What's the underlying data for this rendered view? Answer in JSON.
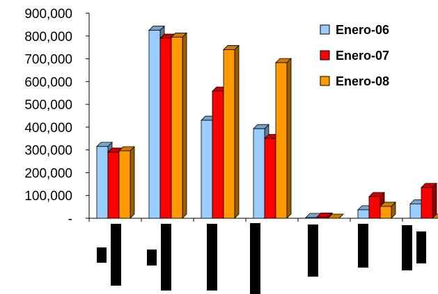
{
  "chart_data": {
    "type": "bar",
    "title": "",
    "xlabel": "",
    "ylabel": "",
    "ylim": [
      0,
      900000
    ],
    "y_ticks": [
      {
        "value": 0,
        "label": "-"
      },
      {
        "value": 100000,
        "label": "100,000"
      },
      {
        "value": 200000,
        "label": "200,000"
      },
      {
        "value": 300000,
        "label": "300,000"
      },
      {
        "value": 400000,
        "label": "400,000"
      },
      {
        "value": 500000,
        "label": "500,000"
      },
      {
        "value": 600000,
        "label": "600,000"
      },
      {
        "value": 700000,
        "label": "700,000"
      },
      {
        "value": 800000,
        "label": "800,000"
      },
      {
        "value": 900000,
        "label": "900,000"
      }
    ],
    "categories": [
      "",
      "",
      "",
      "",
      "",
      "",
      ""
    ],
    "series": [
      {
        "name": "Enero-06",
        "color": "#99ccff",
        "values": [
          315000,
          825000,
          430000,
          393000,
          3000,
          37000,
          63000
        ]
      },
      {
        "name": "Enero-07",
        "color": "#ff0000",
        "values": [
          290000,
          790000,
          558000,
          350000,
          5000,
          95000,
          135000
        ]
      },
      {
        "name": "Enero-08",
        "color": "#ff9900",
        "values": [
          296000,
          795000,
          740000,
          683000,
          0,
          52000,
          0
        ]
      }
    ],
    "grid": false,
    "legend_position": "top-right",
    "three_d": true
  }
}
